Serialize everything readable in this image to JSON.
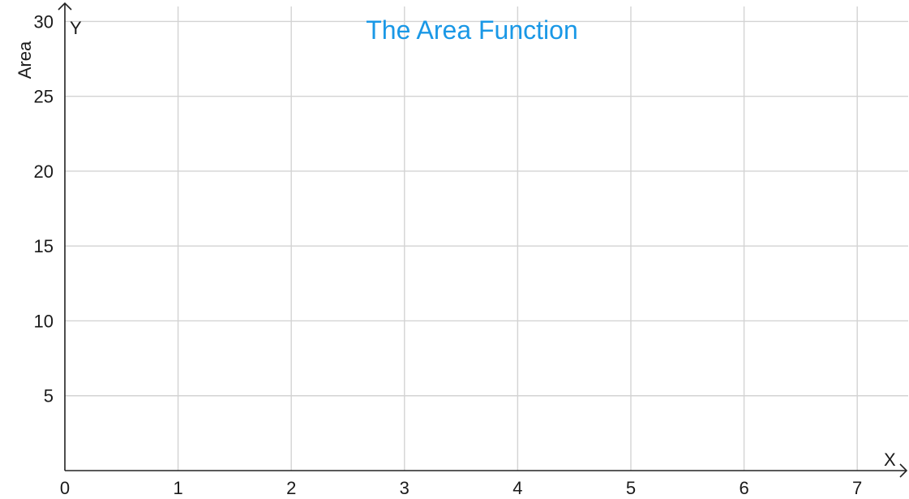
{
  "chart_data": {
    "type": "line",
    "title": "The Area Function",
    "xlabel": "X",
    "ylabel": "Area",
    "y_axis_name": "Y",
    "xlim": [
      0,
      7.45
    ],
    "ylim": [
      0,
      31
    ],
    "x_ticks": [
      0,
      1,
      2,
      3,
      4,
      5,
      6,
      7
    ],
    "x_tick_labels": [
      "0",
      "1",
      "2",
      "3",
      "4",
      "5",
      "6",
      "7"
    ],
    "y_ticks": [
      5,
      10,
      15,
      20,
      25,
      30
    ],
    "y_tick_labels": [
      "5",
      "10",
      "15",
      "20",
      "25",
      "30"
    ],
    "grid": true,
    "series": [],
    "colors": {
      "title": "#1a98e6",
      "grid": "#d3d3d3",
      "axis": "#222222",
      "text": "#1a1a1a"
    }
  }
}
